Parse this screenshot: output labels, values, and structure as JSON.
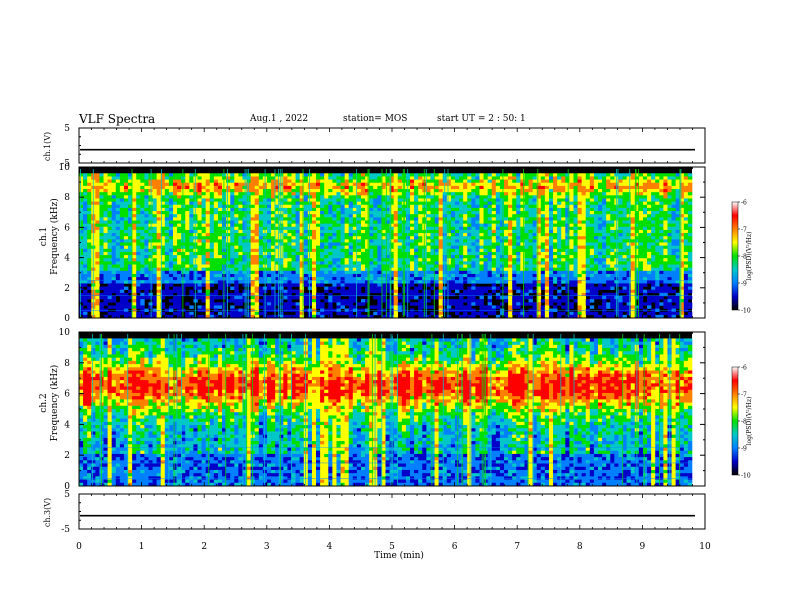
{
  "header": {
    "title": "VLF Spectra",
    "date": "Aug.1  , 2022",
    "station": "station= MOS",
    "start_time": "start UT =  2 : 50: 1"
  },
  "chart_data": [
    {
      "type": "line",
      "title": "",
      "ylabel": "ch.1(V)",
      "ylim": [
        -5,
        5
      ],
      "yticks": [
        "5",
        "-5"
      ],
      "xlim": [
        0,
        10
      ],
      "series": [
        {
          "values_constant": -1.2
        }
      ]
    },
    {
      "type": "heatmap",
      "ylabel": "Frequency (kHz)",
      "channel_label": "ch.1",
      "ylim": [
        0,
        10
      ],
      "yticks": [
        "0",
        "2",
        "4",
        "6",
        "8",
        "10"
      ],
      "xlim": [
        0,
        9.85
      ],
      "colorbar": {
        "label": "log(PSD)(V²/Hz)",
        "range": [
          -10,
          -6
        ],
        "ticks": [
          "-6",
          "-7",
          "-8",
          "-9",
          "-10"
        ],
        "colors": [
          "#000000",
          "#0000c8",
          "#0080ff",
          "#00c8c8",
          "#00e000",
          "#ffff00",
          "#ff8000",
          "#ff0000",
          "#ffffff"
        ]
      },
      "band_kHz": [
        3,
        9.5
      ],
      "dominant_log_psd": -8.5,
      "peak_near_kHz": 8.7
    },
    {
      "type": "heatmap",
      "ylabel": "Frequency (kHz)",
      "channel_label": "ch.2",
      "ylim": [
        0,
        10
      ],
      "yticks": [
        "0",
        "2",
        "4",
        "6",
        "8",
        "10"
      ],
      "xlim": [
        0,
        9.85
      ],
      "colorbar": {
        "label": "log(PSD)(V²/Hz)",
        "range": [
          -10,
          -6
        ],
        "ticks": [
          "-6",
          "-7",
          "-8",
          "-9",
          "-10"
        ],
        "colors": [
          "#000000",
          "#0000c8",
          "#0080ff",
          "#00c8c8",
          "#00e000",
          "#ffff00",
          "#ff8000",
          "#ff0000",
          "#ffffff"
        ]
      },
      "band_kHz": [
        2,
        9.5
      ],
      "dominant_log_psd": -7,
      "peak_near_kHz": 6.5
    },
    {
      "type": "line",
      "ylabel": "ch.3(V)",
      "ylim": [
        -5,
        5
      ],
      "yticks": [
        "5",
        "-5"
      ],
      "xlim": [
        0,
        10
      ],
      "series": [
        {
          "values_constant": -1.2
        }
      ]
    }
  ],
  "x_axis": {
    "label": "Time  (min)",
    "ticks": [
      "0",
      "1",
      "2",
      "3",
      "4",
      "5",
      "6",
      "7",
      "8",
      "9",
      "10"
    ],
    "range": [
      0,
      10
    ]
  }
}
